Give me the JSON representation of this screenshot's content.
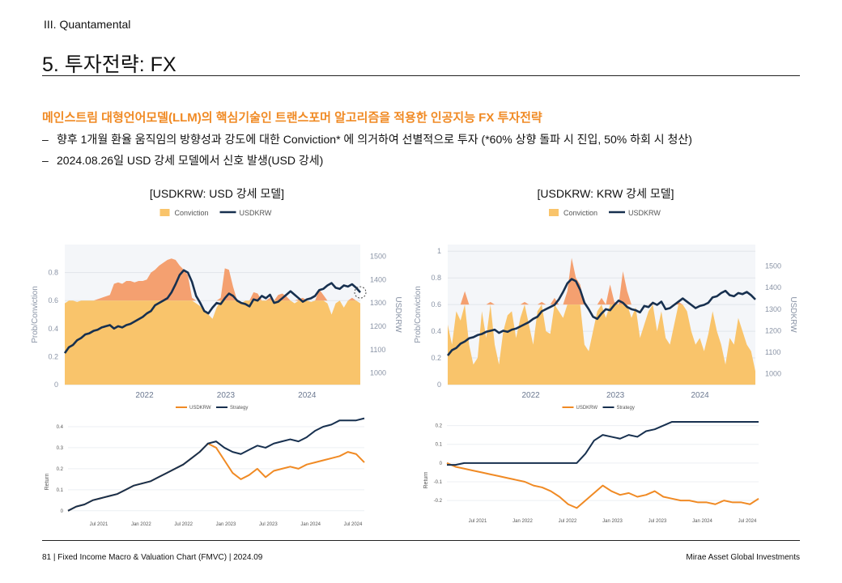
{
  "section": "III. Quantamental",
  "title": "5. 투자전략: FX",
  "subtitle": "메인스트림 대형언어모델(LLM)의 핵심기술인 트랜스포머 알고리즘을 적용한 인공지능 FX 투자전략",
  "bullets": [
    "향후 1개월 환율 움직임의 방향성과 강도에 대한 Conviction* 에 의거하여 선별적으로 투자 (*60% 상향 돌파 시 진입, 50% 하회 시 청산)",
    "2024.08.26일 USD 강세 모델에서 신호 발생(USD 강세)"
  ],
  "footer": {
    "left": "81 | Fixed Income Macro & Valuation Chart (FMVC) | 2024.09",
    "right": "Mirae Asset Global Investments"
  },
  "chart_data": [
    {
      "type": "area",
      "title": "[USDKRW: USD 강세 모델]",
      "legend": [
        "Conviction",
        "USDKRW"
      ],
      "ylabel": "Prob/Conviction",
      "y2label": "USDKRW",
      "ylim": [
        0,
        1
      ],
      "y2lim": [
        950,
        1550
      ],
      "yticks": [
        "0",
        "0.2",
        "0.4",
        "0.6",
        "0.8"
      ],
      "y2ticks": [
        "1000",
        "1100",
        "1200",
        "1300",
        "1400",
        "1500"
      ],
      "xticks": [
        "2022",
        "2023",
        "2024"
      ],
      "threshold": 0.6,
      "colors": {
        "conviction": "#f9c46b",
        "above": "#f4a070",
        "usdkrw": "#17304f"
      },
      "series": [
        {
          "name": "Conviction",
          "values": [
            0.58,
            0.6,
            0.6,
            0.59,
            0.6,
            0.6,
            0.6,
            0.6,
            0.61,
            0.62,
            0.63,
            0.64,
            0.72,
            0.73,
            0.72,
            0.74,
            0.74,
            0.73,
            0.74,
            0.74,
            0.75,
            0.8,
            0.82,
            0.85,
            0.87,
            0.89,
            0.9,
            0.89,
            0.85,
            0.82,
            0.78,
            0.62,
            0.58,
            0.56,
            0.52,
            0.5,
            0.47,
            0.55,
            0.62,
            0.83,
            0.82,
            0.7,
            0.6,
            0.58,
            0.6,
            0.6,
            0.66,
            0.65,
            0.6,
            0.6,
            0.62,
            0.6,
            0.64,
            0.65,
            0.63,
            0.6,
            0.58,
            0.61,
            0.62,
            0.6,
            0.59,
            0.6,
            0.68,
            0.64,
            0.58,
            0.5,
            0.58,
            0.6,
            0.55,
            0.6,
            0.62,
            0.6,
            0.58
          ]
        },
        {
          "name": "USDKRW",
          "values": [
            1085,
            1110,
            1120,
            1140,
            1150,
            1165,
            1170,
            1180,
            1185,
            1195,
            1200,
            1205,
            1190,
            1200,
            1195,
            1205,
            1210,
            1220,
            1230,
            1240,
            1255,
            1265,
            1290,
            1300,
            1310,
            1320,
            1345,
            1380,
            1420,
            1440,
            1430,
            1390,
            1330,
            1300,
            1265,
            1255,
            1280,
            1300,
            1295,
            1320,
            1340,
            1330,
            1310,
            1300,
            1295,
            1285,
            1315,
            1310,
            1330,
            1320,
            1335,
            1300,
            1305,
            1320,
            1335,
            1350,
            1335,
            1320,
            1305,
            1315,
            1320,
            1330,
            1355,
            1360,
            1375,
            1385,
            1365,
            1360,
            1375,
            1370,
            1380,
            1365,
            1345
          ]
        }
      ]
    },
    {
      "type": "area",
      "title": "[USDKRW: KRW 강세 모델]",
      "legend": [
        "Conviction",
        "USDKRW"
      ],
      "ylabel": "Prob/Conviction",
      "y2label": "USDKRW",
      "ylim": [
        0,
        1.05
      ],
      "y2lim": [
        950,
        1600
      ],
      "yticks": [
        "0",
        "0.2",
        "0.4",
        "0.6",
        "0.8",
        "1"
      ],
      "y2ticks": [
        "1000",
        "1100",
        "1200",
        "1300",
        "1400",
        "1500"
      ],
      "xticks": [
        "2022",
        "2023",
        "2024"
      ],
      "threshold": 0.6,
      "colors": {
        "conviction": "#f9c46b",
        "above": "#f4a070",
        "usdkrw": "#17304f"
      },
      "series": [
        {
          "name": "Conviction",
          "values": [
            0.45,
            0.3,
            0.55,
            0.48,
            0.7,
            0.3,
            0.15,
            0.2,
            0.55,
            0.35,
            0.62,
            0.3,
            0.15,
            0.4,
            0.52,
            0.55,
            0.35,
            0.5,
            0.62,
            0.45,
            0.3,
            0.55,
            0.62,
            0.4,
            0.38,
            0.65,
            0.55,
            0.5,
            0.7,
            0.95,
            0.8,
            0.75,
            0.3,
            0.25,
            0.4,
            0.55,
            0.65,
            0.5,
            0.75,
            0.62,
            0.6,
            0.85,
            0.7,
            0.5,
            0.58,
            0.35,
            0.45,
            0.55,
            0.62,
            0.4,
            0.55,
            0.35,
            0.3,
            0.45,
            0.62,
            0.6,
            0.55,
            0.4,
            0.3,
            0.35,
            0.25,
            0.38,
            0.55,
            0.4,
            0.3,
            0.15,
            0.35,
            0.3,
            0.5,
            0.4,
            0.3,
            0.25,
            0.1
          ]
        },
        {
          "name": "USDKRW",
          "values": [
            1085,
            1110,
            1120,
            1140,
            1150,
            1165,
            1170,
            1180,
            1185,
            1195,
            1200,
            1205,
            1190,
            1200,
            1195,
            1205,
            1210,
            1220,
            1230,
            1240,
            1255,
            1265,
            1290,
            1300,
            1310,
            1320,
            1345,
            1380,
            1420,
            1440,
            1430,
            1390,
            1330,
            1300,
            1265,
            1255,
            1280,
            1300,
            1295,
            1320,
            1340,
            1330,
            1310,
            1300,
            1295,
            1285,
            1315,
            1310,
            1330,
            1320,
            1335,
            1300,
            1305,
            1320,
            1335,
            1350,
            1335,
            1320,
            1305,
            1315,
            1320,
            1330,
            1355,
            1360,
            1375,
            1385,
            1365,
            1360,
            1375,
            1370,
            1380,
            1365,
            1345
          ]
        }
      ]
    },
    {
      "type": "line",
      "legend": [
        "USDKRW",
        "Strategy"
      ],
      "ylabel": "Return",
      "ylim": [
        -0.02,
        0.45
      ],
      "yticks": [
        "0",
        "0.1",
        "0.2",
        "0.3",
        "0.4"
      ],
      "xticks": [
        "Jul 2021",
        "Jan 2022",
        "Jul 2022",
        "Jan 2023",
        "Jul 2023",
        "Jan 2024",
        "Jul 2024"
      ],
      "colors": {
        "USDKRW": "#f08a24",
        "Strategy": "#17304f"
      },
      "series": [
        {
          "name": "USDKRW",
          "values": [
            0,
            0.02,
            0.03,
            0.05,
            0.06,
            0.07,
            0.08,
            0.1,
            0.12,
            0.13,
            0.14,
            0.16,
            0.18,
            0.2,
            0.22,
            0.25,
            0.28,
            0.32,
            0.3,
            0.24,
            0.18,
            0.15,
            0.17,
            0.2,
            0.16,
            0.19,
            0.2,
            0.21,
            0.2,
            0.22,
            0.23,
            0.24,
            0.25,
            0.26,
            0.28,
            0.27,
            0.23
          ]
        },
        {
          "name": "Strategy",
          "values": [
            0,
            0.02,
            0.03,
            0.05,
            0.06,
            0.07,
            0.08,
            0.1,
            0.12,
            0.13,
            0.14,
            0.16,
            0.18,
            0.2,
            0.22,
            0.25,
            0.28,
            0.32,
            0.33,
            0.3,
            0.28,
            0.27,
            0.29,
            0.31,
            0.3,
            0.32,
            0.33,
            0.34,
            0.33,
            0.35,
            0.38,
            0.4,
            0.41,
            0.43,
            0.43,
            0.43,
            0.44
          ]
        }
      ]
    },
    {
      "type": "line",
      "legend": [
        "USDKRW",
        "Strategy"
      ],
      "ylabel": "Return",
      "ylim": [
        -0.26,
        0.25
      ],
      "yticks": [
        "-0.2",
        "-0.1",
        "0",
        "0.1",
        "0.2"
      ],
      "xticks": [
        "Jul 2021",
        "Jan 2022",
        "Jul 2022",
        "Jan 2023",
        "Jul 2023",
        "Jan 2024",
        "Jul 2024"
      ],
      "colors": {
        "USDKRW": "#f08a24",
        "Strategy": "#17304f"
      },
      "series": [
        {
          "name": "USDKRW",
          "values": [
            0,
            -0.02,
            -0.03,
            -0.04,
            -0.05,
            -0.06,
            -0.07,
            -0.08,
            -0.09,
            -0.1,
            -0.12,
            -0.13,
            -0.15,
            -0.18,
            -0.22,
            -0.24,
            -0.2,
            -0.16,
            -0.12,
            -0.15,
            -0.17,
            -0.16,
            -0.18,
            -0.17,
            -0.15,
            -0.18,
            -0.19,
            -0.2,
            -0.2,
            -0.21,
            -0.21,
            -0.22,
            -0.2,
            -0.21,
            -0.21,
            -0.22,
            -0.19
          ]
        },
        {
          "name": "Strategy",
          "values": [
            -0.01,
            -0.01,
            0,
            0,
            0,
            0,
            0,
            0,
            0,
            0,
            0,
            0,
            0,
            0,
            0,
            0,
            0.05,
            0.12,
            0.15,
            0.14,
            0.13,
            0.15,
            0.14,
            0.17,
            0.18,
            0.2,
            0.22,
            0.22,
            0.22,
            0.22,
            0.22,
            0.22,
            0.22,
            0.22,
            0.22,
            0.22,
            0.22
          ]
        }
      ]
    }
  ]
}
